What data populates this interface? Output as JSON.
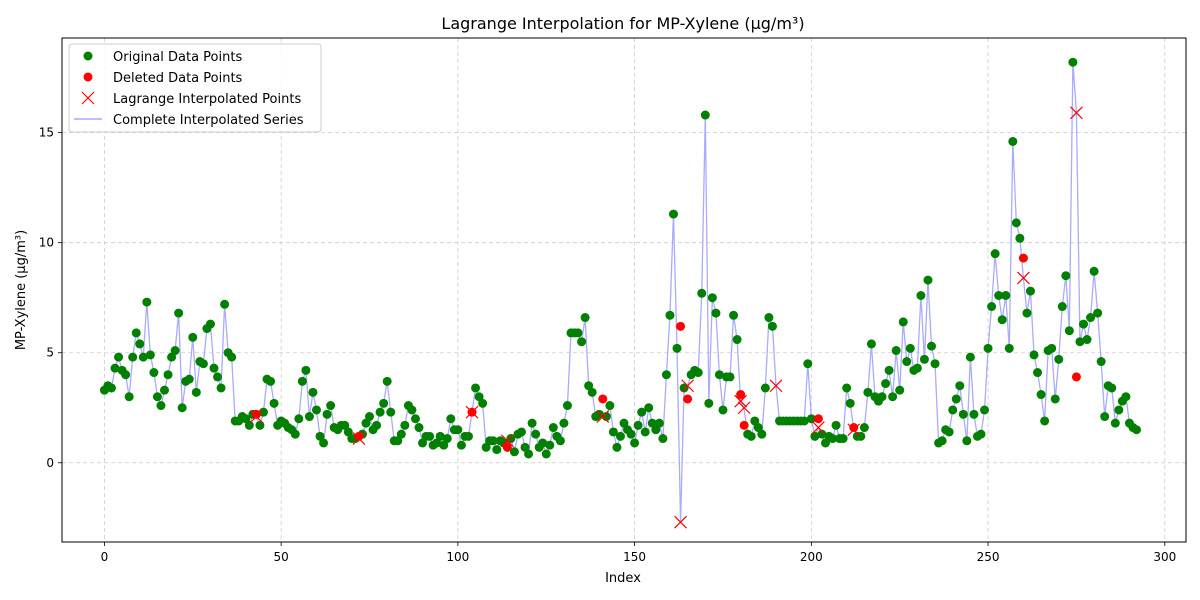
{
  "chart_data": {
    "type": "scatter",
    "title": "Lagrange Interpolation for MP-Xylene (µg/m³)",
    "xlabel": "Index",
    "ylabel": "MP-Xylene (µg/m³)",
    "xlim": [
      -12,
      306
    ],
    "ylim": [
      -3.6,
      19.3
    ],
    "xticks": [
      0,
      50,
      100,
      150,
      200,
      250,
      300
    ],
    "yticks": [
      0,
      5,
      10,
      15
    ],
    "grid": true,
    "legend_position": "top-left",
    "colors": {
      "original": "#008000",
      "deleted": "#ff0000",
      "lagrange": "#ff0000",
      "series": "#aaaaff"
    },
    "legend": [
      {
        "key": "original",
        "label": "Original Data Points"
      },
      {
        "key": "deleted",
        "label": "Deleted Data Points"
      },
      {
        "key": "lagrange",
        "label": "Lagrange Interpolated Points"
      },
      {
        "key": "series",
        "label": "Complete Interpolated Series"
      }
    ],
    "series_values": [
      3.3,
      3.5,
      3.4,
      4.3,
      4.8,
      4.2,
      4.0,
      3.0,
      4.8,
      5.9,
      5.4,
      4.8,
      7.3,
      4.9,
      4.1,
      3.0,
      2.6,
      3.3,
      4.0,
      4.8,
      5.1,
      6.8,
      2.5,
      3.7,
      3.8,
      5.7,
      3.2,
      4.6,
      4.5,
      6.1,
      6.3,
      4.3,
      3.9,
      3.4,
      7.2,
      5.0,
      4.8,
      1.9,
      1.9,
      2.1,
      2.0,
      1.7,
      2.2,
      2.1,
      1.7,
      2.3,
      3.8,
      3.7,
      2.7,
      1.7,
      1.9,
      1.8,
      1.6,
      1.5,
      1.3,
      2.0,
      3.7,
      4.2,
      2.1,
      3.2,
      2.4,
      1.2,
      0.9,
      2.2,
      2.6,
      1.6,
      1.5,
      1.7,
      1.7,
      1.4,
      1.1,
      1.1,
      1.2,
      1.3,
      1.8,
      2.1,
      1.5,
      1.7,
      2.3,
      2.7,
      3.7,
      2.3,
      1.0,
      1.0,
      1.3,
      1.7,
      2.6,
      2.4,
      2.0,
      1.6,
      0.9,
      1.2,
      1.2,
      0.8,
      0.9,
      1.2,
      0.8,
      1.1,
      2.0,
      1.5,
      1.5,
      0.8,
      1.2,
      1.2,
      2.3,
      3.4,
      3.0,
      2.7,
      0.7,
      1.0,
      1.0,
      0.6,
      1.0,
      0.9,
      1.0,
      1.1,
      0.5,
      1.3,
      1.4,
      0.7,
      0.4,
      1.8,
      1.3,
      0.7,
      0.9,
      0.4,
      0.8,
      1.6,
      1.2,
      1.0,
      1.8,
      2.6,
      5.9,
      5.9,
      5.9,
      5.5,
      6.6,
      3.5,
      3.2,
      2.1,
      2.2,
      2.1,
      2.1,
      2.6,
      1.4,
      0.7,
      1.2,
      1.8,
      1.5,
      1.3,
      0.9,
      1.7,
      2.3,
      1.4,
      2.5,
      1.8,
      1.5,
      1.8,
      1.1,
      4.0,
      6.7,
      11.3,
      5.2,
      -2.7,
      3.4,
      3.5,
      4.0,
      4.2,
      4.1,
      7.7,
      15.8,
      2.7,
      7.5,
      6.8,
      4.0,
      2.4,
      3.9,
      3.9,
      6.7,
      5.6,
      2.8,
      2.4,
      1.3,
      1.2,
      1.9,
      1.6,
      1.3,
      3.4,
      6.6,
      6.2,
      3.5,
      1.9,
      1.9,
      1.9,
      1.9,
      1.9,
      1.9,
      1.9,
      1.9,
      4.5,
      2.0,
      1.2,
      1.6,
      1.3,
      0.9,
      1.2,
      1.1,
      1.7,
      1.1,
      1.1,
      3.4,
      2.7,
      1.5,
      1.2,
      1.2,
      1.6,
      3.2,
      5.4,
      3.0,
      2.8,
      3.0,
      3.6,
      4.2,
      3.0,
      5.1,
      3.3,
      6.4,
      4.6,
      5.2,
      4.2,
      4.3,
      7.6,
      4.7,
      8.3,
      5.3,
      4.5,
      0.9,
      1.0,
      1.5,
      1.4,
      2.4,
      2.9,
      3.5,
      2.2,
      1.0,
      4.8,
      2.2,
      1.2,
      1.3,
      2.4,
      5.2,
      7.1,
      9.5,
      7.6,
      6.5,
      7.6,
      5.2,
      14.6,
      10.9,
      10.2,
      8.4,
      6.8,
      7.8,
      4.9,
      4.1,
      3.1,
      1.9,
      5.1,
      5.2,
      2.9,
      4.7,
      7.1,
      8.5,
      6.0,
      18.2,
      15.9,
      5.5,
      6.3,
      5.6,
      6.6,
      8.7,
      6.8,
      4.6,
      2.1,
      3.5,
      3.4,
      1.8,
      2.4,
      2.8,
      3.0,
      1.8,
      1.6,
      1.5
    ],
    "original_points": [
      [
        0,
        3.3
      ],
      [
        1,
        3.5
      ],
      [
        2,
        3.4
      ],
      [
        3,
        4.3
      ],
      [
        4,
        4.8
      ],
      [
        5,
        4.2
      ],
      [
        6,
        4.0
      ],
      [
        7,
        3.0
      ],
      [
        8,
        4.8
      ],
      [
        9,
        5.9
      ],
      [
        10,
        5.4
      ],
      [
        11,
        4.8
      ],
      [
        12,
        7.3
      ],
      [
        13,
        4.9
      ],
      [
        14,
        4.1
      ],
      [
        15,
        3.0
      ],
      [
        16,
        2.6
      ],
      [
        17,
        3.3
      ],
      [
        18,
        4.0
      ],
      [
        19,
        4.8
      ],
      [
        20,
        5.1
      ],
      [
        21,
        6.8
      ],
      [
        22,
        2.5
      ],
      [
        23,
        3.7
      ],
      [
        24,
        3.8
      ],
      [
        25,
        5.7
      ],
      [
        26,
        3.2
      ],
      [
        27,
        4.6
      ],
      [
        28,
        4.5
      ],
      [
        29,
        6.1
      ],
      [
        30,
        6.3
      ],
      [
        31,
        4.3
      ],
      [
        32,
        3.9
      ],
      [
        33,
        3.4
      ],
      [
        34,
        7.2
      ],
      [
        35,
        5.0
      ],
      [
        36,
        4.8
      ],
      [
        37,
        1.9
      ],
      [
        38,
        1.9
      ],
      [
        39,
        2.1
      ],
      [
        40,
        2.0
      ],
      [
        41,
        1.7
      ],
      [
        42,
        2.2
      ],
      [
        44,
        1.7
      ],
      [
        45,
        2.3
      ],
      [
        46,
        3.8
      ],
      [
        47,
        3.7
      ],
      [
        48,
        2.7
      ],
      [
        49,
        1.7
      ],
      [
        50,
        1.9
      ],
      [
        51,
        1.8
      ],
      [
        52,
        1.6
      ],
      [
        53,
        1.5
      ],
      [
        54,
        1.3
      ],
      [
        55,
        2.0
      ],
      [
        56,
        3.7
      ],
      [
        57,
        4.2
      ],
      [
        58,
        2.1
      ],
      [
        59,
        3.2
      ],
      [
        60,
        2.4
      ],
      [
        61,
        1.2
      ],
      [
        62,
        0.9
      ],
      [
        63,
        2.2
      ],
      [
        64,
        2.6
      ],
      [
        65,
        1.6
      ],
      [
        66,
        1.5
      ],
      [
        67,
        1.7
      ],
      [
        68,
        1.7
      ],
      [
        69,
        1.4
      ],
      [
        70,
        1.1
      ],
      [
        71,
        1.1
      ],
      [
        73,
        1.3
      ],
      [
        74,
        1.8
      ],
      [
        75,
        2.1
      ],
      [
        76,
        1.5
      ],
      [
        77,
        1.7
      ],
      [
        78,
        2.3
      ],
      [
        79,
        2.7
      ],
      [
        80,
        3.7
      ],
      [
        81,
        2.3
      ],
      [
        82,
        1.0
      ],
      [
        83,
        1.0
      ],
      [
        84,
        1.3
      ],
      [
        85,
        1.7
      ],
      [
        86,
        2.6
      ],
      [
        87,
        2.4
      ],
      [
        88,
        2.0
      ],
      [
        89,
        1.6
      ],
      [
        90,
        0.9
      ],
      [
        91,
        1.2
      ],
      [
        92,
        1.2
      ],
      [
        93,
        0.8
      ],
      [
        94,
        0.9
      ],
      [
        95,
        1.2
      ],
      [
        96,
        0.8
      ],
      [
        97,
        1.1
      ],
      [
        98,
        2.0
      ],
      [
        99,
        1.5
      ],
      [
        100,
        1.5
      ],
      [
        101,
        0.8
      ],
      [
        102,
        1.2
      ],
      [
        103,
        1.2
      ],
      [
        105,
        3.4
      ],
      [
        106,
        3.0
      ],
      [
        107,
        2.7
      ],
      [
        108,
        0.7
      ],
      [
        109,
        1.0
      ],
      [
        110,
        1.0
      ],
      [
        111,
        0.6
      ],
      [
        112,
        1.0
      ],
      [
        113,
        0.9
      ],
      [
        115,
        1.1
      ],
      [
        116,
        0.5
      ],
      [
        117,
        1.3
      ],
      [
        118,
        1.4
      ],
      [
        119,
        0.7
      ],
      [
        120,
        0.4
      ],
      [
        121,
        1.8
      ],
      [
        122,
        1.3
      ],
      [
        123,
        0.7
      ],
      [
        124,
        0.9
      ],
      [
        125,
        0.4
      ],
      [
        126,
        0.8
      ],
      [
        127,
        1.6
      ],
      [
        128,
        1.2
      ],
      [
        129,
        1.0
      ],
      [
        130,
        1.8
      ],
      [
        131,
        2.6
      ],
      [
        132,
        5.9
      ],
      [
        133,
        5.9
      ],
      [
        134,
        5.9
      ],
      [
        135,
        5.5
      ],
      [
        136,
        6.6
      ],
      [
        137,
        3.5
      ],
      [
        138,
        3.2
      ],
      [
        139,
        2.1
      ],
      [
        140,
        2.2
      ],
      [
        142,
        2.1
      ],
      [
        143,
        2.6
      ],
      [
        144,
        1.4
      ],
      [
        145,
        0.7
      ],
      [
        146,
        1.2
      ],
      [
        147,
        1.8
      ],
      [
        148,
        1.5
      ],
      [
        149,
        1.3
      ],
      [
        150,
        0.9
      ],
      [
        151,
        1.7
      ],
      [
        152,
        2.3
      ],
      [
        153,
        1.4
      ],
      [
        154,
        2.5
      ],
      [
        155,
        1.8
      ],
      [
        156,
        1.5
      ],
      [
        157,
        1.8
      ],
      [
        158,
        1.1
      ],
      [
        159,
        4.0
      ],
      [
        160,
        6.7
      ],
      [
        161,
        11.3
      ],
      [
        162,
        5.2
      ],
      [
        164,
        3.4
      ],
      [
        166,
        4.0
      ],
      [
        167,
        4.2
      ],
      [
        168,
        4.1
      ],
      [
        169,
        7.7
      ],
      [
        170,
        15.8
      ],
      [
        171,
        2.7
      ],
      [
        172,
        7.5
      ],
      [
        173,
        6.8
      ],
      [
        174,
        4.0
      ],
      [
        175,
        2.4
      ],
      [
        176,
        3.9
      ],
      [
        177,
        3.9
      ],
      [
        178,
        6.7
      ],
      [
        179,
        5.6
      ],
      [
        182,
        1.3
      ],
      [
        183,
        1.2
      ],
      [
        184,
        1.9
      ],
      [
        185,
        1.6
      ],
      [
        186,
        1.3
      ],
      [
        187,
        3.4
      ],
      [
        188,
        6.6
      ],
      [
        189,
        6.2
      ],
      [
        191,
        1.9
      ],
      [
        192,
        1.9
      ],
      [
        193,
        1.9
      ],
      [
        194,
        1.9
      ],
      [
        195,
        1.9
      ],
      [
        196,
        1.9
      ],
      [
        197,
        1.9
      ],
      [
        198,
        1.9
      ],
      [
        199,
        4.5
      ],
      [
        200,
        2.0
      ],
      [
        201,
        1.2
      ],
      [
        203,
        1.3
      ],
      [
        204,
        0.9
      ],
      [
        205,
        1.2
      ],
      [
        206,
        1.1
      ],
      [
        207,
        1.7
      ],
      [
        208,
        1.1
      ],
      [
        209,
        1.1
      ],
      [
        210,
        3.4
      ],
      [
        211,
        2.7
      ],
      [
        213,
        1.2
      ],
      [
        214,
        1.2
      ],
      [
        215,
        1.6
      ],
      [
        216,
        3.2
      ],
      [
        217,
        5.4
      ],
      [
        218,
        3.0
      ],
      [
        219,
        2.8
      ],
      [
        220,
        3.0
      ],
      [
        221,
        3.6
      ],
      [
        222,
        4.2
      ],
      [
        223,
        3.0
      ],
      [
        224,
        5.1
      ],
      [
        225,
        3.3
      ],
      [
        226,
        6.4
      ],
      [
        227,
        4.6
      ],
      [
        228,
        5.2
      ],
      [
        229,
        4.2
      ],
      [
        230,
        4.3
      ],
      [
        231,
        7.6
      ],
      [
        232,
        4.7
      ],
      [
        233,
        8.3
      ],
      [
        234,
        5.3
      ],
      [
        235,
        4.5
      ],
      [
        236,
        0.9
      ],
      [
        237,
        1.0
      ],
      [
        238,
        1.5
      ],
      [
        239,
        1.4
      ],
      [
        240,
        2.4
      ],
      [
        241,
        2.9
      ],
      [
        242,
        3.5
      ],
      [
        243,
        2.2
      ],
      [
        244,
        1.0
      ],
      [
        245,
        4.8
      ],
      [
        246,
        2.2
      ],
      [
        247,
        1.2
      ],
      [
        248,
        1.3
      ],
      [
        249,
        2.4
      ],
      [
        250,
        5.2
      ],
      [
        251,
        7.1
      ],
      [
        252,
        9.5
      ],
      [
        253,
        7.6
      ],
      [
        254,
        6.5
      ],
      [
        255,
        7.6
      ],
      [
        256,
        5.2
      ],
      [
        257,
        14.6
      ],
      [
        258,
        10.9
      ],
      [
        259,
        10.2
      ],
      [
        261,
        6.8
      ],
      [
        262,
        7.8
      ],
      [
        263,
        4.9
      ],
      [
        264,
        4.1
      ],
      [
        265,
        3.1
      ],
      [
        266,
        1.9
      ],
      [
        267,
        5.1
      ],
      [
        268,
        5.2
      ],
      [
        269,
        2.9
      ],
      [
        270,
        4.7
      ],
      [
        271,
        7.1
      ],
      [
        272,
        8.5
      ],
      [
        273,
        6.0
      ],
      [
        274,
        18.2
      ],
      [
        276,
        5.5
      ],
      [
        277,
        6.3
      ],
      [
        278,
        5.6
      ],
      [
        279,
        6.6
      ],
      [
        280,
        8.7
      ],
      [
        281,
        6.8
      ],
      [
        282,
        4.6
      ],
      [
        283,
        2.1
      ],
      [
        284,
        3.5
      ],
      [
        285,
        3.4
      ],
      [
        286,
        1.8
      ],
      [
        287,
        2.4
      ],
      [
        288,
        2.8
      ],
      [
        289,
        3.0
      ],
      [
        290,
        1.8
      ],
      [
        291,
        1.6
      ],
      [
        292,
        1.5
      ]
    ],
    "deleted_points": [
      [
        43,
        2.2
      ],
      [
        72,
        1.2
      ],
      [
        104,
        2.3
      ],
      [
        114,
        0.7
      ],
      [
        141,
        2.9
      ],
      [
        163,
        6.2
      ],
      [
        165,
        2.9
      ],
      [
        180,
        3.1
      ],
      [
        181,
        1.7
      ],
      [
        202,
        2.0
      ],
      [
        212,
        1.6
      ],
      [
        260,
        9.3
      ],
      [
        275,
        3.9
      ]
    ],
    "lagrange_points": [
      [
        43,
        2.1
      ],
      [
        72,
        1.1
      ],
      [
        104,
        2.3
      ],
      [
        114,
        1.0
      ],
      [
        141,
        2.1
      ],
      [
        163,
        -2.7
      ],
      [
        165,
        3.5
      ],
      [
        180,
        2.8
      ],
      [
        181,
        2.5
      ],
      [
        190,
        3.5
      ],
      [
        202,
        1.6
      ],
      [
        212,
        1.5
      ],
      [
        260,
        8.4
      ],
      [
        275,
        15.9
      ]
    ]
  }
}
